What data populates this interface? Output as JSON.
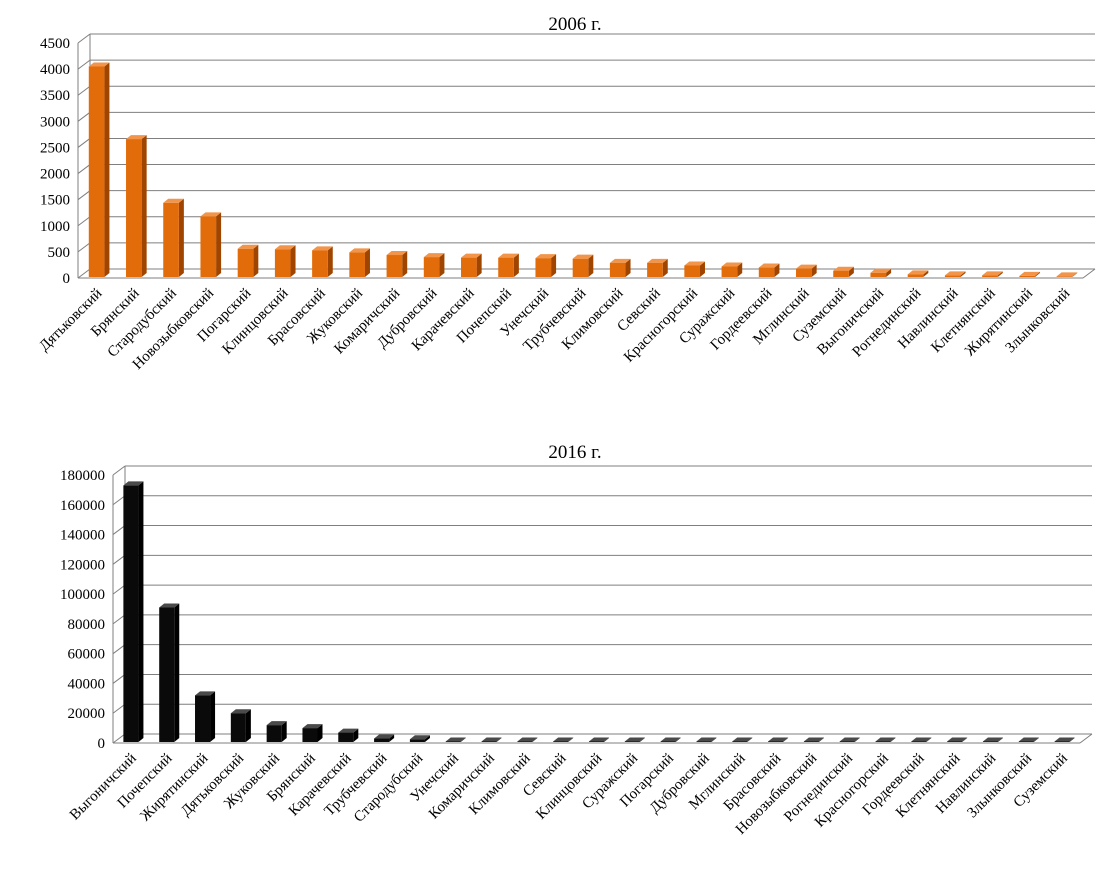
{
  "chart_data": [
    {
      "type": "bar",
      "title": "2006 г.",
      "xlabel": "",
      "ylabel": "",
      "ylim": [
        0,
        4500
      ],
      "yticks": [
        0,
        500,
        1000,
        1500,
        2000,
        2500,
        3000,
        3500,
        4000,
        4500
      ],
      "grid": true,
      "legend": "none",
      "bar_color": "#e36c0a",
      "bar_side_color": "#a04500",
      "bar_top_color": "#f2954a",
      "categories": [
        "Дятьковский",
        "Брянский",
        "Стародубский",
        "Новозыбковский",
        "Погарский",
        "Клинцовский",
        "Брасовский",
        "Жуковский",
        "Комаричский",
        "Дубровский",
        "Карачевский",
        "Почепский",
        "Унечский",
        "Трубчевский",
        "Климовский",
        "Севский",
        "Красногорский",
        "Суражский",
        "Гордеевский",
        "Мглинский",
        "Суземский",
        "Выгоничский",
        "Рогнединский",
        "Навлинский",
        "Клетнянский",
        "Жирятинский",
        "Злынковский"
      ],
      "values": [
        4050,
        2660,
        1440,
        1180,
        560,
        550,
        530,
        490,
        440,
        400,
        390,
        390,
        380,
        370,
        290,
        290,
        240,
        220,
        200,
        180,
        140,
        100,
        70,
        50,
        50,
        40,
        30
      ]
    },
    {
      "type": "bar",
      "title": "2016 г.",
      "xlabel": "",
      "ylabel": "",
      "ylim": [
        0,
        180000
      ],
      "yticks": [
        0,
        20000,
        40000,
        60000,
        80000,
        100000,
        120000,
        140000,
        160000,
        180000
      ],
      "grid": true,
      "legend": "none",
      "bar_color": "#0a0a0a",
      "bar_side_color": "#000000",
      "bar_top_color": "#4a4a4a",
      "categories": [
        "Выгоничский",
        "Почепский",
        "Жирятинский",
        "Дятьковский",
        "Жуковский",
        "Брянский",
        "Карачевский",
        "Трубчевский",
        "Стародубский",
        "Унечский",
        "Комаричский",
        "Климовский",
        "Севский",
        "Клинцовский",
        "Суражский",
        "Погарский",
        "Дубровский",
        "Мглинский",
        "Брасовский",
        "Новозыбковский",
        "Рогнединский",
        "Красногорский",
        "Гордеевский",
        "Клетнянский",
        "Навлинский",
        "Злынковский",
        "Суземский"
      ],
      "values": [
        173000,
        91000,
        32000,
        20000,
        12000,
        10000,
        7000,
        3000,
        2500,
        1000,
        800,
        700,
        600,
        500,
        400,
        400,
        300,
        300,
        250,
        200,
        200,
        150,
        150,
        100,
        100,
        50,
        50
      ]
    }
  ]
}
